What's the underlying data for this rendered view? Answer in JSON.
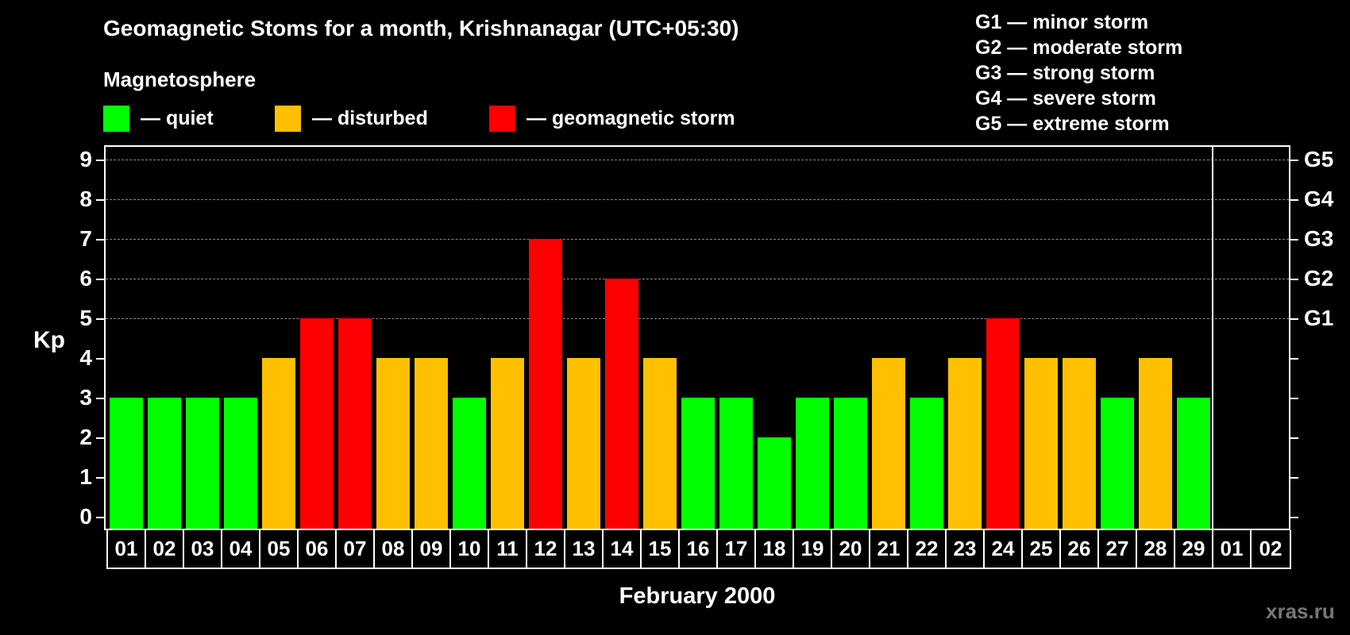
{
  "header": {
    "title": "Geomagnetic Stoms for a month, Krishnanagar (UTC+05:30)",
    "subtitle": "Magnetosphere"
  },
  "legend": [
    {
      "label": "— quiet",
      "color": "#00ff00",
      "icon": "green-swatch"
    },
    {
      "label": "— disturbed",
      "color": "#ffc000",
      "icon": "amber-swatch"
    },
    {
      "label": "— geomagnetic storm",
      "color": "#ff0000",
      "icon": "red-swatch"
    }
  ],
  "g_legend": [
    "G1 — minor storm",
    "G2 — moderate storm",
    "G3 — strong storm",
    "G4 — severe storm",
    "G5 — extreme storm"
  ],
  "axes": {
    "ylabel": "Kp",
    "yticks": [
      "0",
      "1",
      "2",
      "3",
      "4",
      "5",
      "6",
      "7",
      "8",
      "9"
    ],
    "right_ticks": {
      "5": "G1",
      "6": "G2",
      "7": "G3",
      "8": "G4",
      "9": "G5"
    },
    "xlabel": "February 2000"
  },
  "dates": [
    "01",
    "02",
    "03",
    "04",
    "05",
    "06",
    "07",
    "08",
    "09",
    "10",
    "11",
    "12",
    "13",
    "14",
    "15",
    "16",
    "17",
    "18",
    "19",
    "20",
    "21",
    "22",
    "23",
    "24",
    "25",
    "26",
    "27",
    "28",
    "29",
    "01",
    "02"
  ],
  "watermark": "xras.ru",
  "colors": {
    "quiet": "#00ff00",
    "disturbed": "#ffc000",
    "storm": "#ff0000",
    "background": "#000000",
    "grid": "#8a8a8a"
  },
  "chart_data": {
    "type": "bar",
    "title": "Geomagnetic Stoms for a month, Krishnanagar (UTC+05:30)",
    "xlabel": "February 2000",
    "ylabel": "Kp",
    "ylim": [
      0,
      9
    ],
    "grid": true,
    "legend_position": "top",
    "categories": [
      "01",
      "02",
      "03",
      "04",
      "05",
      "06",
      "07",
      "08",
      "09",
      "10",
      "11",
      "12",
      "13",
      "14",
      "15",
      "16",
      "17",
      "18",
      "19",
      "20",
      "21",
      "22",
      "23",
      "24",
      "25",
      "26",
      "27",
      "28",
      "29",
      "01",
      "02"
    ],
    "values": [
      3,
      3,
      3,
      3,
      4,
      5,
      5,
      4,
      4,
      3,
      4,
      7,
      4,
      6,
      4,
      3,
      3,
      2,
      3,
      3,
      4,
      3,
      4,
      5,
      4,
      4,
      3,
      4,
      3,
      null,
      null
    ],
    "status": [
      "quiet",
      "quiet",
      "quiet",
      "quiet",
      "disturbed",
      "storm",
      "storm",
      "disturbed",
      "disturbed",
      "quiet",
      "disturbed",
      "storm",
      "disturbed",
      "storm",
      "disturbed",
      "quiet",
      "quiet",
      "quiet",
      "quiet",
      "quiet",
      "disturbed",
      "quiet",
      "disturbed",
      "storm",
      "disturbed",
      "disturbed",
      "quiet",
      "disturbed",
      "quiet",
      null,
      null
    ],
    "secondary_axis": {
      "5": "G1",
      "6": "G2",
      "7": "G3",
      "8": "G4",
      "9": "G5"
    },
    "legend": [
      "quiet",
      "disturbed",
      "geomagnetic storm"
    ]
  }
}
